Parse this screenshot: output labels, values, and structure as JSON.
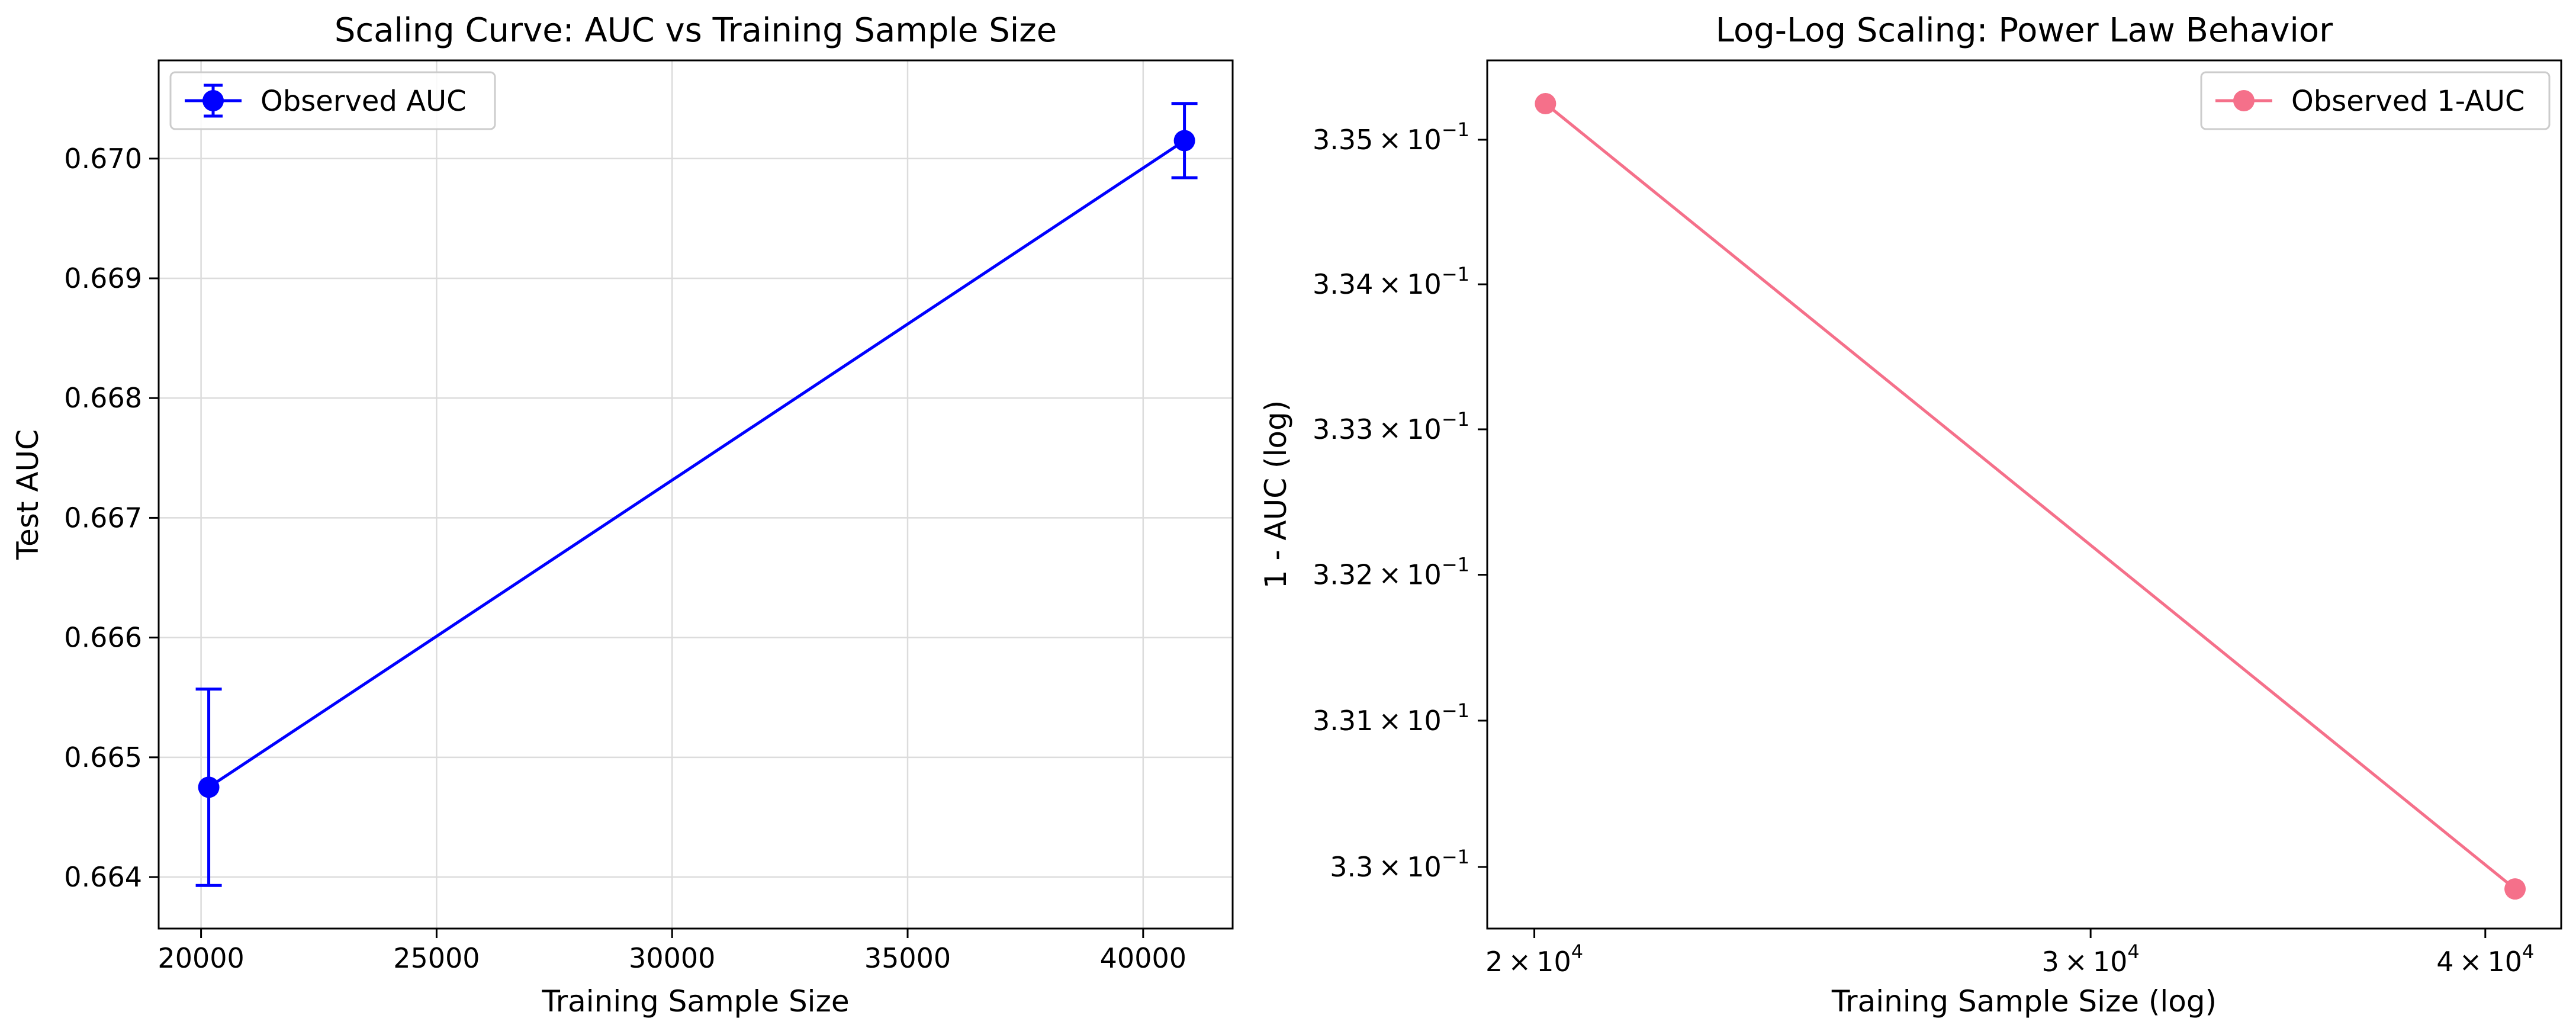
{
  "chart_data": [
    {
      "type": "line",
      "title": "Scaling Curve: AUC vs Training Sample Size",
      "xlabel": "Training Sample Size",
      "ylabel": "Test AUC",
      "xlim": [
        19100,
        41900
      ],
      "ylim": [
        0.66357,
        0.67082
      ],
      "x_ticks": [
        20000,
        25000,
        30000,
        35000,
        40000
      ],
      "x_tick_labels": [
        "20000",
        "25000",
        "30000",
        "35000",
        "40000"
      ],
      "y_ticks": [
        0.664,
        0.665,
        0.666,
        0.667,
        0.668,
        0.669,
        0.67
      ],
      "y_tick_labels": [
        "0.664",
        "0.665",
        "0.666",
        "0.667",
        "0.668",
        "0.669",
        "0.670"
      ],
      "grid": true,
      "legend": "upper-left",
      "series": [
        {
          "name": "Observed AUC",
          "color": "#0000ff",
          "marker": "circle",
          "error_bars": true,
          "points": [
            {
              "x": 20163,
              "y": 0.66475,
              "yerr_low": 0.66393,
              "yerr_high": 0.66557
            },
            {
              "x": 40877,
              "y": 0.67015,
              "yerr_low": 0.66984,
              "yerr_high": 0.67046
            }
          ]
        }
      ]
    },
    {
      "type": "line",
      "title": "Log-Log Scaling: Power Law Behavior",
      "xlabel": "Training Sample Size (log)",
      "ylabel": "1 - AUC (log)",
      "x_scale": "log",
      "y_scale": "log",
      "xlim": [
        19325,
        42275
      ],
      "ylim": [
        0.32958,
        0.33555
      ],
      "x_ticks": [
        {
          "value": 20000,
          "base": "2",
          "exponent": "4"
        },
        {
          "value": 30000,
          "base": "3",
          "exponent": "4"
        },
        {
          "value": 40000,
          "base": "4",
          "exponent": "4"
        }
      ],
      "y_ticks": [
        {
          "value": 0.33,
          "base": "3.3",
          "exponent": "−1"
        },
        {
          "value": 0.331,
          "base": "3.31",
          "exponent": "−1"
        },
        {
          "value": 0.332,
          "base": "3.32",
          "exponent": "−1"
        },
        {
          "value": 0.333,
          "base": "3.33",
          "exponent": "−1"
        },
        {
          "value": 0.334,
          "base": "3.34",
          "exponent": "−1"
        },
        {
          "value": 0.335,
          "base": "3.35",
          "exponent": "−1"
        }
      ],
      "grid": false,
      "legend": "upper-right",
      "series": [
        {
          "name": "Observed 1-AUC",
          "color": "#f5708a",
          "marker": "circle",
          "points": [
            {
              "x": 20163,
              "y": 0.33525
            },
            {
              "x": 40877,
              "y": 0.32985
            }
          ]
        }
      ]
    }
  ]
}
